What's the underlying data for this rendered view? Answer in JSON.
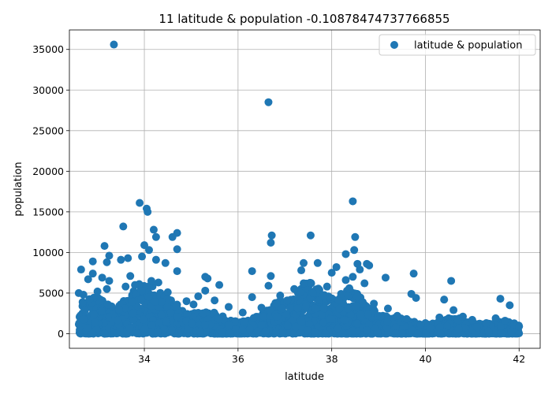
{
  "chart_data": {
    "type": "scatter",
    "title": "11 latitude & population -0.10878474737766855",
    "xlabel": "latitude",
    "ylabel": "population",
    "xlim": [
      32.4,
      42.45
    ],
    "ylim": [
      -1800,
      37400
    ],
    "xticks": [
      34,
      36,
      38,
      40,
      42
    ],
    "yticks": [
      0,
      5000,
      10000,
      15000,
      20000,
      25000,
      30000,
      35000
    ],
    "grid": true,
    "legend_position": "top-right",
    "color": "#1f77b4",
    "series": [
      {
        "name": "latitude & population",
        "points": [
          [
            33.35,
            35600
          ],
          [
            36.65,
            28500
          ],
          [
            33.9,
            16100
          ],
          [
            34.05,
            15400
          ],
          [
            34.07,
            15000
          ],
          [
            38.45,
            16300
          ],
          [
            33.55,
            13200
          ],
          [
            34.2,
            12800
          ],
          [
            34.7,
            12400
          ],
          [
            36.72,
            12100
          ],
          [
            37.55,
            12100
          ],
          [
            38.5,
            11900
          ],
          [
            34.25,
            11900
          ],
          [
            34.6,
            11900
          ],
          [
            36.7,
            11200
          ],
          [
            33.15,
            10800
          ],
          [
            34.0,
            10900
          ],
          [
            34.7,
            10400
          ],
          [
            38.48,
            10300
          ],
          [
            34.1,
            10300
          ],
          [
            33.25,
            9600
          ],
          [
            33.5,
            9100
          ],
          [
            33.65,
            9300
          ],
          [
            33.95,
            9500
          ],
          [
            34.25,
            9100
          ],
          [
            38.3,
            9800
          ],
          [
            32.9,
            8900
          ],
          [
            33.2,
            8800
          ],
          [
            37.4,
            8700
          ],
          [
            37.7,
            8700
          ],
          [
            38.55,
            8600
          ],
          [
            38.75,
            8600
          ],
          [
            34.45,
            8700
          ],
          [
            38.1,
            8200
          ],
          [
            38.8,
            8400
          ],
          [
            32.65,
            7900
          ],
          [
            36.3,
            7700
          ],
          [
            37.35,
            7800
          ],
          [
            38.6,
            7900
          ],
          [
            39.75,
            7400
          ],
          [
            34.7,
            7700
          ],
          [
            36.7,
            7100
          ],
          [
            38.0,
            7500
          ],
          [
            39.15,
            6900
          ],
          [
            40.55,
            6500
          ],
          [
            33.25,
            6500
          ],
          [
            33.7,
            7100
          ],
          [
            35.35,
            6800
          ],
          [
            35.3,
            7000
          ],
          [
            38.45,
            7000
          ],
          [
            32.8,
            6700
          ],
          [
            32.9,
            7400
          ],
          [
            33.1,
            6900
          ],
          [
            34.15,
            6500
          ],
          [
            35.6,
            6000
          ],
          [
            36.65,
            5900
          ],
          [
            37.2,
            5500
          ],
          [
            37.9,
            5800
          ],
          [
            38.3,
            6600
          ],
          [
            38.7,
            6200
          ],
          [
            39.7,
            4900
          ],
          [
            39.8,
            4400
          ],
          [
            40.4,
            4200
          ],
          [
            41.6,
            4300
          ],
          [
            41.8,
            3500
          ],
          [
            35.15,
            4600
          ],
          [
            35.3,
            5300
          ],
          [
            36.3,
            4500
          ],
          [
            36.9,
            4700
          ],
          [
            37.05,
            4100
          ],
          [
            32.6,
            5000
          ],
          [
            32.7,
            4800
          ],
          [
            33.0,
            5200
          ],
          [
            33.2,
            5500
          ],
          [
            33.6,
            5800
          ],
          [
            33.8,
            6000
          ],
          [
            34.3,
            6300
          ],
          [
            34.5,
            5100
          ],
          [
            34.9,
            4000
          ],
          [
            35.05,
            3600
          ],
          [
            35.5,
            4100
          ],
          [
            35.8,
            3300
          ],
          [
            36.1,
            2600
          ],
          [
            36.5,
            3200
          ],
          [
            37.4,
            6200
          ],
          [
            37.6,
            5000
          ],
          [
            37.8,
            4600
          ],
          [
            38.2,
            4900
          ],
          [
            38.9,
            3700
          ],
          [
            39.2,
            3100
          ],
          [
            39.4,
            2200
          ],
          [
            39.6,
            1800
          ],
          [
            40.0,
            1300
          ],
          [
            40.3,
            2000
          ],
          [
            40.6,
            2900
          ],
          [
            40.8,
            2100
          ],
          [
            41.0,
            1700
          ],
          [
            41.3,
            1300
          ],
          [
            41.5,
            1900
          ],
          [
            41.7,
            1600
          ],
          [
            41.95,
            1000
          ],
          [
            42.0,
            900
          ],
          [
            40.1,
            700
          ],
          [
            41.1,
            800
          ],
          [
            39.9,
            1100
          ]
        ]
      }
    ]
  }
}
